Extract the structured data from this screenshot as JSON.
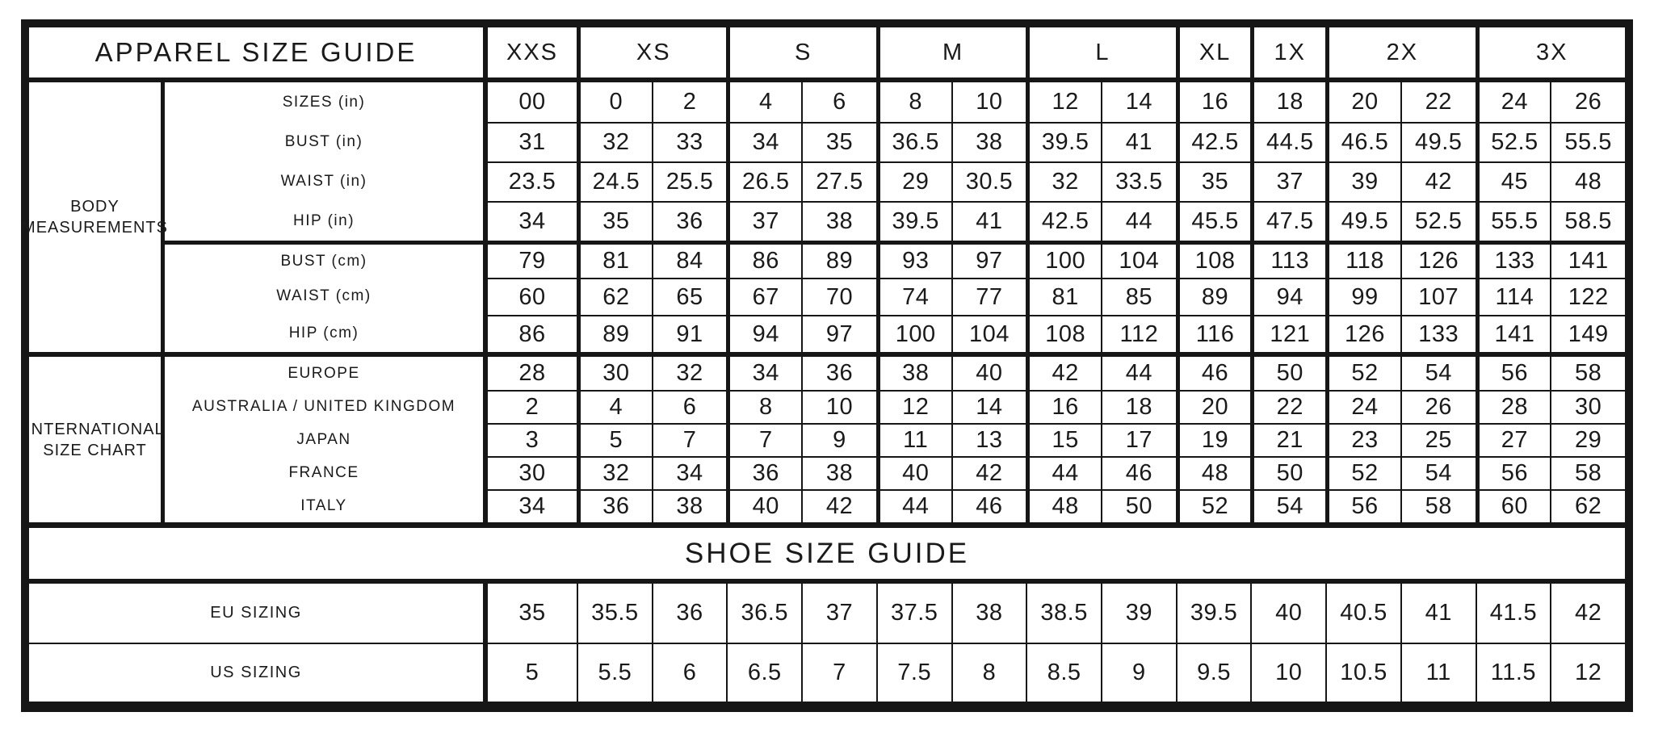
{
  "colors": {
    "ink": "#161616",
    "paper": "#ffffff"
  },
  "header": {
    "title": "APPAREL SIZE GUIDE",
    "sizes": [
      "XXS",
      "XS",
      "S",
      "M",
      "L",
      "XL",
      "1X",
      "2X",
      "3X"
    ]
  },
  "body_measurements": {
    "section_label": "BODY MEASUREMENTS",
    "rows": [
      {
        "label": "SIZES (in)",
        "values": [
          "00",
          "0",
          "2",
          "4",
          "6",
          "8",
          "10",
          "12",
          "14",
          "16",
          "18",
          "20",
          "22",
          "24",
          "26"
        ]
      },
      {
        "label": "BUST (in)",
        "values": [
          "31",
          "32",
          "33",
          "34",
          "35",
          "36.5",
          "38",
          "39.5",
          "41",
          "42.5",
          "44.5",
          "46.5",
          "49.5",
          "52.5",
          "55.5"
        ]
      },
      {
        "label": "WAIST (in)",
        "values": [
          "23.5",
          "24.5",
          "25.5",
          "26.5",
          "27.5",
          "29",
          "30.5",
          "32",
          "33.5",
          "35",
          "37",
          "39",
          "42",
          "45",
          "48"
        ]
      },
      {
        "label": "HIP (in)",
        "values": [
          "34",
          "35",
          "36",
          "37",
          "38",
          "39.5",
          "41",
          "42.5",
          "44",
          "45.5",
          "47.5",
          "49.5",
          "52.5",
          "55.5",
          "58.5"
        ]
      },
      {
        "label": "BUST (cm)",
        "values": [
          "79",
          "81",
          "84",
          "86",
          "89",
          "93",
          "97",
          "100",
          "104",
          "108",
          "113",
          "118",
          "126",
          "133",
          "141"
        ]
      },
      {
        "label": "WAIST (cm)",
        "values": [
          "60",
          "62",
          "65",
          "67",
          "70",
          "74",
          "77",
          "81",
          "85",
          "89",
          "94",
          "99",
          "107",
          "114",
          "122"
        ]
      },
      {
        "label": "HIP (cm)",
        "values": [
          "86",
          "89",
          "91",
          "94",
          "97",
          "100",
          "104",
          "108",
          "112",
          "116",
          "121",
          "126",
          "133",
          "141",
          "149"
        ]
      }
    ]
  },
  "international": {
    "section_label": "INTERNATIONAL SIZE CHART",
    "rows": [
      {
        "label": "EUROPE",
        "values": [
          "28",
          "30",
          "32",
          "34",
          "36",
          "38",
          "40",
          "42",
          "44",
          "46",
          "50",
          "52",
          "54",
          "56",
          "58"
        ]
      },
      {
        "label": "AUSTRALIA / UNITED KINGDOM",
        "values": [
          "2",
          "4",
          "6",
          "8",
          "10",
          "12",
          "14",
          "16",
          "18",
          "20",
          "22",
          "24",
          "26",
          "28",
          "30"
        ]
      },
      {
        "label": "JAPAN",
        "values": [
          "3",
          "5",
          "7",
          "7",
          "9",
          "11",
          "13",
          "15",
          "17",
          "19",
          "21",
          "23",
          "25",
          "27",
          "29"
        ]
      },
      {
        "label": "FRANCE",
        "values": [
          "30",
          "32",
          "34",
          "36",
          "38",
          "40",
          "42",
          "44",
          "46",
          "48",
          "50",
          "52",
          "54",
          "56",
          "58"
        ]
      },
      {
        "label": "ITALY",
        "values": [
          "34",
          "36",
          "38",
          "40",
          "42",
          "44",
          "46",
          "48",
          "50",
          "52",
          "54",
          "56",
          "58",
          "60",
          "62"
        ]
      }
    ]
  },
  "shoe": {
    "title": "SHOE SIZE GUIDE",
    "rows": [
      {
        "label": "EU SIZING",
        "values": [
          "35",
          "35.5",
          "36",
          "36.5",
          "37",
          "37.5",
          "38",
          "38.5",
          "39",
          "39.5",
          "40",
          "40.5",
          "41",
          "41.5",
          "42"
        ]
      },
      {
        "label": "US SIZING",
        "values": [
          "5",
          "5.5",
          "6",
          "6.5",
          "7",
          "7.5",
          "8",
          "8.5",
          "9",
          "9.5",
          "10",
          "10.5",
          "11",
          "11.5",
          "12"
        ]
      }
    ]
  }
}
